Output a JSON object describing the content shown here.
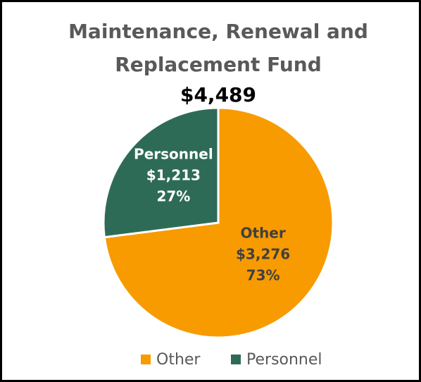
{
  "chart_data": {
    "type": "pie",
    "title_lines": [
      "Maintenance, Renewal and",
      "Replacement Fund"
    ],
    "subtitle": "$4,489",
    "categories": [
      "Other",
      "Personnel"
    ],
    "values": [
      3276,
      1213
    ],
    "value_labels": [
      "$3,276",
      "$1,213"
    ],
    "percentages": [
      73,
      27
    ],
    "percentage_labels": [
      "73%",
      "27%"
    ],
    "colors": [
      "#f79b00",
      "#2e6b57"
    ],
    "legend": "bottom"
  }
}
